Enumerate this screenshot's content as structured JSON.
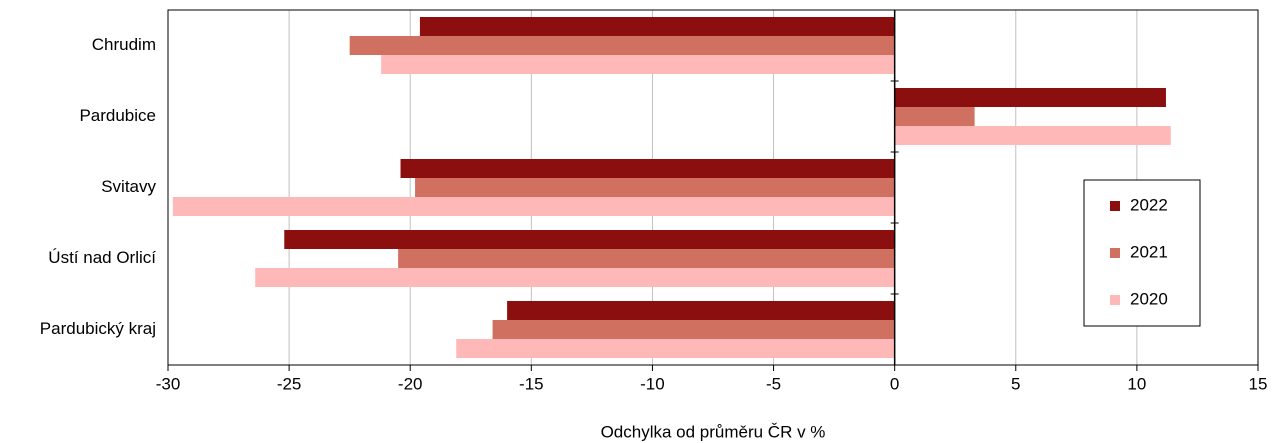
{
  "chart_data": {
    "type": "hbar",
    "x_label": "Odchylka od průměru ČR v %",
    "categories": [
      "Chrudim",
      "Pardubice",
      "Svitavy",
      "Ústí nad Orlicí",
      "Pardubický kraj"
    ],
    "series": [
      {
        "name": "2022",
        "color": "#8b0f0f",
        "values": [
          -19.6,
          11.2,
          -20.4,
          -25.2,
          -16.0
        ]
      },
      {
        "name": "2021",
        "color": "#d07060",
        "values": [
          -22.5,
          3.3,
          -19.8,
          -20.5,
          -16.6
        ]
      },
      {
        "name": "2020",
        "color": "#ffb8b8",
        "values": [
          -21.2,
          11.4,
          -29.8,
          -26.4,
          -18.1
        ]
      }
    ],
    "xlim": [
      -30,
      15
    ],
    "xticks": [
      -30,
      -25,
      -20,
      -15,
      -10,
      -5,
      0,
      5,
      10,
      15
    ],
    "grid": true,
    "legend": "right"
  }
}
